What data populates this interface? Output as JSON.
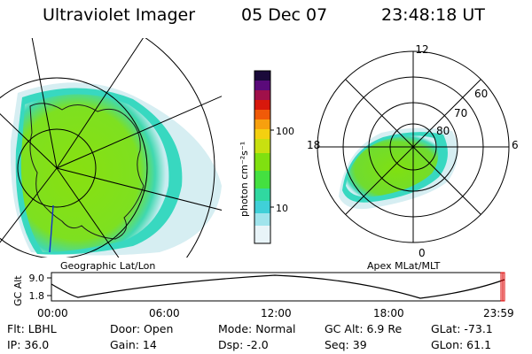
{
  "header": {
    "instrument": "Ultraviolet Imager",
    "date": "05 Dec 07",
    "time": "23:48:18 UT"
  },
  "colorbar": {
    "label": "photon cm⁻²s⁻¹",
    "ticks": [
      "100",
      "10"
    ],
    "colors": [
      "#1a0a3a",
      "#5a0a7a",
      "#a0104a",
      "#d8180c",
      "#f05a08",
      "#f7a00e",
      "#f4d010",
      "#c8e010",
      "#80e010",
      "#44e040",
      "#30d8a0",
      "#40d0d8",
      "#a0e4ec",
      "#e8f4f8"
    ]
  },
  "left_map": {
    "caption": "Geographic Lat/Lon",
    "aurora_color": "#7ee020",
    "edge_color": "#30d8c0"
  },
  "polar_plot": {
    "caption": "Apex MLat/MLT",
    "mlt_labels": [
      "12",
      "18",
      "6",
      "0"
    ],
    "lat_labels": [
      "60",
      "70",
      "80"
    ]
  },
  "altitude_plot": {
    "ylabel": "GC Alt",
    "y_ticks": [
      "9.0",
      "1.8"
    ],
    "x_ticks": [
      "00:00",
      "06:00",
      "12:00",
      "18:00",
      "23:59"
    ]
  },
  "info": {
    "flt": "Flt: LBHL",
    "door": "Door: Open",
    "mode": "Mode: Normal",
    "gc_alt": "GC Alt: 6.9 Re",
    "glat": "GLat: -73.1",
    "ip": "IP: 36.0",
    "gain": "Gain: 14",
    "dsp": "Dsp:   -2.0",
    "seq": "Seq: 39",
    "glon": "GLon:  61.1"
  }
}
